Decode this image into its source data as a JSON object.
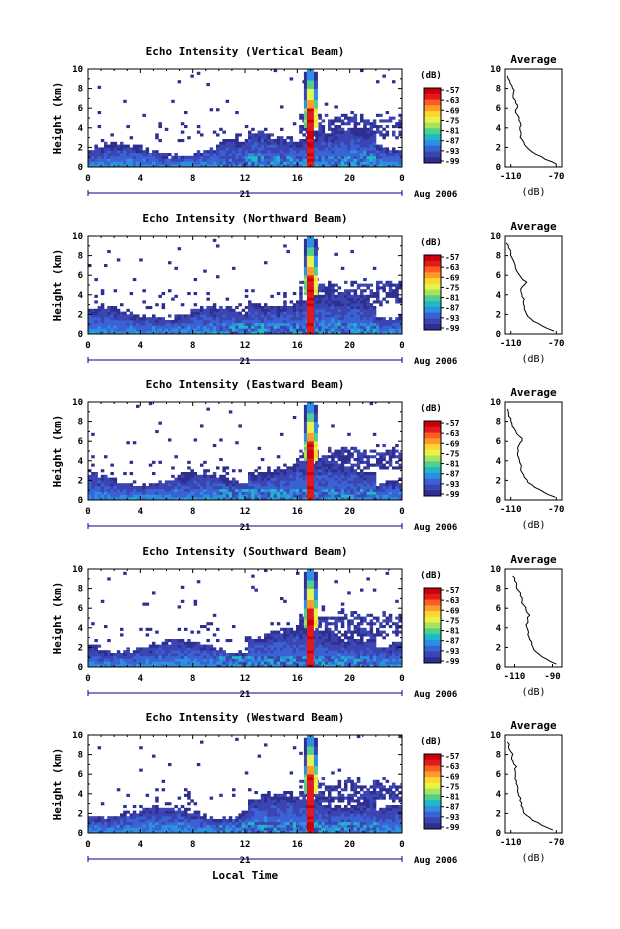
{
  "figure": {
    "xlabel": "Local Time",
    "day_label": "21",
    "date_label": "Aug 2006",
    "colorbar_title": "(dB)",
    "colorbar_ticks": [
      "-57",
      "-63",
      "-69",
      "-75",
      "-81",
      "-87",
      "-93",
      "-99"
    ],
    "colorbar_colors": [
      "#c9000b",
      "#e31a1c",
      "#fd5c22",
      "#fe9a29",
      "#ffd530",
      "#e9f24a",
      "#a8e25e",
      "#4fd08c",
      "#20b7c9",
      "#2c8fe0",
      "#3a62d4",
      "#3b45b2",
      "#2d2e8f"
    ],
    "avg_title": "Average",
    "avg_xlabel": "(dB)"
  },
  "chart_data": [
    {
      "type": "heatmap",
      "title": "Echo Intensity (Vertical Beam)",
      "ylabel": "Height (km)",
      "x_ticks": [
        "0",
        "4",
        "8",
        "12",
        "16",
        "20",
        "0"
      ],
      "y_ticks": [
        "0",
        "2",
        "4",
        "6",
        "8",
        "10"
      ],
      "xlim": [
        0,
        24
      ],
      "ylim": [
        0,
        10
      ],
      "zlim": [
        -99,
        -57
      ],
      "avg_profile": {
        "x_ticks": [
          "-110",
          "-70"
        ],
        "xlim": [
          -115,
          -65
        ],
        "ylim": [
          0,
          10
        ],
        "heights": [
          0.3,
          0.8,
          1.3,
          1.8,
          2.3,
          2.8,
          3.3,
          3.8,
          4.3,
          4.8,
          5.3,
          5.8,
          6.3,
          6.8,
          7.3,
          7.8,
          8.3,
          8.8,
          9.3
        ],
        "values": [
          -70,
          -80,
          -88,
          -94,
          -98,
          -100,
          -101,
          -102,
          -101,
          -103,
          -104,
          -106,
          -104,
          -106,
          -108,
          -107,
          -109,
          -111,
          -113
        ]
      }
    },
    {
      "type": "heatmap",
      "title": "Echo Intensity (Northward Beam)",
      "ylabel": "Height (km)",
      "x_ticks": [
        "0",
        "4",
        "8",
        "12",
        "16",
        "20",
        "0"
      ],
      "y_ticks": [
        "0",
        "2",
        "4",
        "6",
        "8",
        "10"
      ],
      "xlim": [
        0,
        24
      ],
      "ylim": [
        0,
        10
      ],
      "zlim": [
        -99,
        -57
      ],
      "avg_profile": {
        "x_ticks": [
          "-110",
          "-70"
        ],
        "xlim": [
          -115,
          -65
        ],
        "ylim": [
          0,
          10
        ],
        "heights": [
          0.3,
          0.8,
          1.3,
          1.8,
          2.3,
          2.8,
          3.3,
          3.8,
          4.3,
          4.8,
          5.3,
          5.8,
          6.3,
          6.8,
          7.3,
          7.8,
          8.3,
          8.8,
          9.3
        ],
        "values": [
          -72,
          -82,
          -90,
          -95,
          -97,
          -98,
          -99,
          -100,
          -101,
          -100,
          -96,
          -101,
          -104,
          -106,
          -107,
          -109,
          -110,
          -112,
          -114
        ]
      }
    },
    {
      "type": "heatmap",
      "title": "Echo Intensity (Eastward Beam)",
      "ylabel": "Height (km)",
      "x_ticks": [
        "0",
        "4",
        "8",
        "12",
        "16",
        "20",
        "0"
      ],
      "y_ticks": [
        "0",
        "2",
        "4",
        "6",
        "8",
        "10"
      ],
      "xlim": [
        0,
        24
      ],
      "ylim": [
        0,
        10
      ],
      "zlim": [
        -99,
        -57
      ],
      "avg_profile": {
        "x_ticks": [
          "-110",
          "-70"
        ],
        "xlim": [
          -115,
          -65
        ],
        "ylim": [
          0,
          10
        ],
        "heights": [
          0.3,
          0.8,
          1.3,
          1.8,
          2.3,
          2.8,
          3.3,
          3.8,
          4.3,
          4.8,
          5.3,
          5.8,
          6.3,
          6.8,
          7.3,
          7.8,
          8.3,
          8.8,
          9.3
        ],
        "values": [
          -71,
          -81,
          -89,
          -95,
          -98,
          -100,
          -101,
          -102,
          -103,
          -104,
          -104,
          -102,
          -100,
          -105,
          -107,
          -109,
          -110,
          -112,
          -113
        ]
      }
    },
    {
      "type": "heatmap",
      "title": "Echo Intensity (Southward Beam)",
      "ylabel": "Height (km)",
      "x_ticks": [
        "0",
        "4",
        "8",
        "12",
        "16",
        "20",
        "0"
      ],
      "y_ticks": [
        "0",
        "2",
        "4",
        "6",
        "8",
        "10"
      ],
      "xlim": [
        0,
        24
      ],
      "ylim": [
        0,
        10
      ],
      "zlim": [
        -99,
        -57
      ],
      "avg_profile": {
        "x_ticks": [
          "-110",
          "-90"
        ],
        "xlim": [
          -115,
          -85
        ],
        "ylim": [
          0,
          10
        ],
        "heights": [
          0.3,
          0.8,
          1.3,
          1.8,
          2.3,
          2.8,
          3.3,
          3.8,
          4.3,
          4.8,
          5.3,
          5.8,
          6.3,
          6.8,
          7.3,
          7.8,
          8.3,
          8.8,
          9.3
        ],
        "values": [
          -88,
          -93,
          -97,
          -100,
          -101,
          -102,
          -103,
          -103,
          -104,
          -103,
          -102,
          -104,
          -105,
          -106,
          -107,
          -108,
          -109,
          -110,
          -111
        ]
      }
    },
    {
      "type": "heatmap",
      "title": "Echo Intensity (Westward Beam)",
      "ylabel": "Height (km)",
      "x_ticks": [
        "0",
        "4",
        "8",
        "12",
        "16",
        "20",
        "0"
      ],
      "y_ticks": [
        "0",
        "2",
        "4",
        "6",
        "8",
        "10"
      ],
      "xlim": [
        0,
        24
      ],
      "ylim": [
        0,
        10
      ],
      "zlim": [
        -99,
        -57
      ],
      "avg_profile": {
        "x_ticks": [
          "-110",
          "-70"
        ],
        "xlim": [
          -115,
          -65
        ],
        "ylim": [
          0,
          10
        ],
        "heights": [
          0.3,
          0.8,
          1.3,
          1.8,
          2.3,
          2.8,
          3.3,
          3.8,
          4.3,
          4.8,
          5.3,
          5.8,
          6.3,
          6.8,
          7.3,
          7.8,
          8.3,
          8.8,
          9.3
        ],
        "values": [
          -73,
          -83,
          -91,
          -96,
          -99,
          -101,
          -102,
          -103,
          -104,
          -104,
          -105,
          -106,
          -106,
          -105,
          -108,
          -109,
          -110,
          -112,
          -113
        ]
      }
    }
  ]
}
